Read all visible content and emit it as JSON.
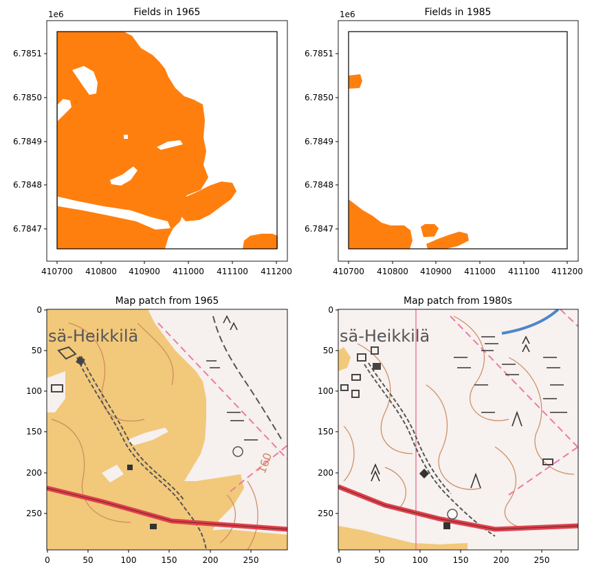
{
  "panels": [
    {
      "title": "Fields in 1965",
      "offset_label": "1e6",
      "xticks": [
        "410700",
        "410800",
        "410900",
        "411000",
        "411100",
        "411200"
      ],
      "yticks": [
        "6.7851",
        "6.7850",
        "6.7849",
        "6.7848",
        "6.7847"
      ],
      "field_color": "#ff7f0e"
    },
    {
      "title": "Fields in 1985",
      "offset_label": "1e6",
      "xticks": [
        "410700",
        "410800",
        "410900",
        "411000",
        "411100",
        "411200"
      ],
      "yticks": [
        "6.7851",
        "6.7850",
        "6.7849",
        "6.7848",
        "6.7847"
      ],
      "field_color": "#ff7f0e"
    },
    {
      "title": "Map patch from 1965",
      "map_label": "sä-Heikkilä",
      "contour_label": "160",
      "xticks": [
        "0",
        "50",
        "100",
        "150",
        "200",
        "250"
      ],
      "yticks": [
        "0",
        "50",
        "100",
        "150",
        "200",
        "250"
      ]
    },
    {
      "title": "Map patch from 1980s",
      "map_label": "sä-Heikkilä",
      "xticks": [
        "0",
        "50",
        "100",
        "150",
        "200",
        "250"
      ],
      "yticks": [
        "0",
        "50",
        "100",
        "150",
        "200",
        "250"
      ]
    }
  ],
  "colors": {
    "field": "#ff7f0e",
    "map_field": "#f2c87a",
    "map_paper": "#f6f0ee",
    "road_red": "#e0404c",
    "contour": "#c98a5e",
    "boundary_pink": "#ee7aa2",
    "water": "#4d87c7"
  }
}
